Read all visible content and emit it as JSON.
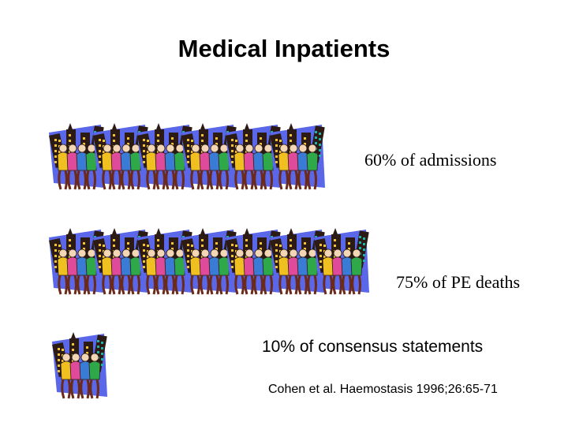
{
  "slide": {
    "title": "Medical Inpatients",
    "rows": [
      {
        "label": "60% of admissions",
        "groups": 6,
        "icon": "crowd-group-icon"
      },
      {
        "label": "75% of PE deaths",
        "groups": 7,
        "icon": "crowd-group-icon"
      },
      {
        "label": "10% of consensus statements",
        "groups": 1,
        "icon": "crowd-group-icon"
      }
    ],
    "citation": "Cohen et al. Haemostasis 1996;26:65-71"
  },
  "colors": {
    "background_shape": "#5a67e8",
    "building_dark": "#2b1b14",
    "window_yellow": "#f2c230",
    "window_teal": "#1fb3a5",
    "person_pink": "#e04a9a",
    "person_green": "#2fa84a",
    "person_blue": "#3a7bd5",
    "person_yellow": "#f0c020",
    "legs": "#6b2a1a"
  }
}
